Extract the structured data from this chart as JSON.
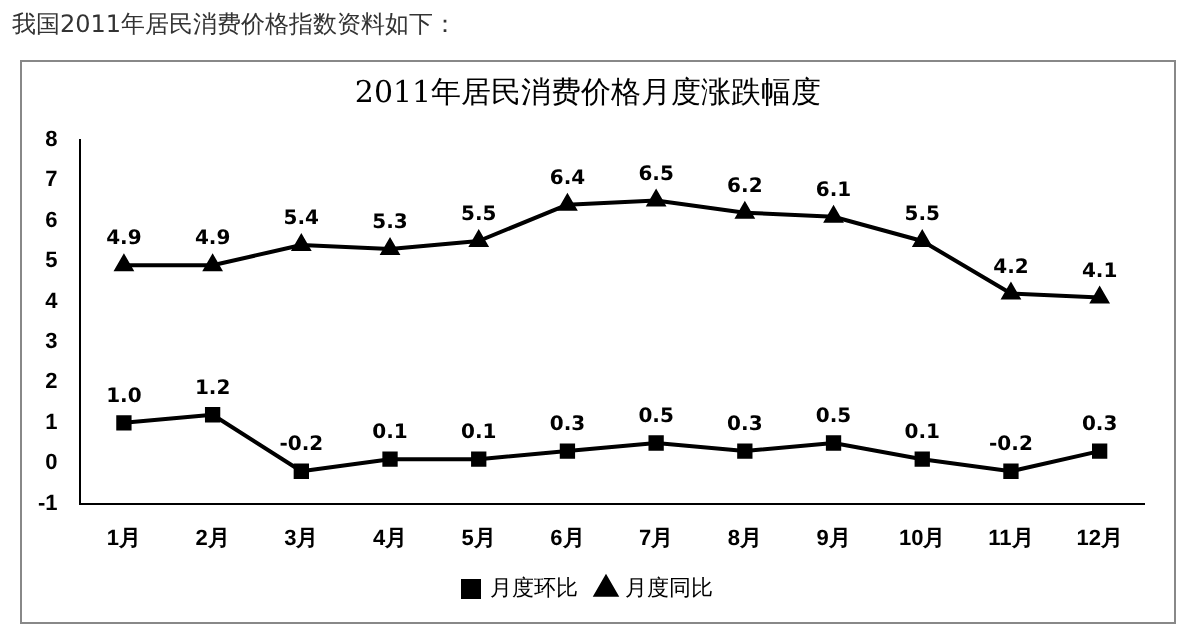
{
  "chart_data": {
    "type": "line",
    "title": "2011年居民消费价格月度涨跌幅度",
    "annotations": [
      "我国2011年居民消费价格指数资料如下："
    ],
    "categories": [
      "1月",
      "2月",
      "3月",
      "4月",
      "5月",
      "6月",
      "7月",
      "8月",
      "9月",
      "10月",
      "11月",
      "12月"
    ],
    "series": [
      {
        "name": "月度环比",
        "color": "#000000",
        "marker": "square",
        "values": [
          1.0,
          1.2,
          -0.2,
          0.1,
          0.1,
          0.3,
          0.5,
          0.3,
          0.5,
          0.1,
          -0.2,
          0.3
        ],
        "value_labels": [
          "1.0",
          "1.2",
          "-0.2",
          "0.1",
          "0.1",
          "0.3",
          "0.5",
          "0.3",
          "0.5",
          "0.1",
          "-0.2",
          "0.3"
        ]
      },
      {
        "name": "月度同比",
        "color": "#000000",
        "marker": "triangle",
        "values": [
          4.9,
          4.9,
          5.4,
          5.3,
          5.5,
          6.4,
          6.5,
          6.2,
          6.1,
          5.5,
          4.2,
          4.1
        ],
        "value_labels": [
          "4.9",
          "4.9",
          "5.4",
          "5.3",
          "5.5",
          "6.4",
          "6.5",
          "6.2",
          "6.1",
          "5.5",
          "4.2",
          "4.1"
        ]
      }
    ],
    "ylim": [
      -1,
      8
    ],
    "yticks": [
      -1,
      0,
      1,
      2,
      3,
      4,
      5,
      6,
      7,
      8
    ],
    "grid": false,
    "legend": "bottom",
    "line_style": "solid"
  }
}
